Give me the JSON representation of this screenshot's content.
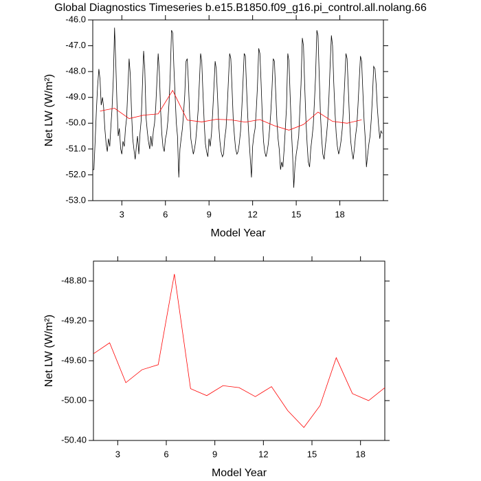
{
  "chart_data": [
    {
      "type": "line",
      "title": "Global Diagnostics Timeseries b.e15.B1850.f09_g16.pi_control.all.nolang.66",
      "xlabel": "Model Year",
      "ylabel": "Net LW (W/m²)",
      "xlim": [
        1,
        21
      ],
      "ylim": [
        -53,
        -46
      ],
      "xticks": [
        3,
        6,
        9,
        12,
        15,
        18
      ],
      "yticks": [
        {
          "value": -46,
          "label": "-46.0"
        },
        {
          "value": -47,
          "label": "-47.0"
        },
        {
          "value": -48,
          "label": "-48.0"
        },
        {
          "value": -49,
          "label": "-49.0"
        },
        {
          "value": -50,
          "label": "-50.0"
        },
        {
          "value": -51,
          "label": "-51.0"
        },
        {
          "value": -52,
          "label": "-52.0"
        },
        {
          "value": -53,
          "label": "-53.0"
        }
      ],
      "series": [
        {
          "color": "#000000",
          "x": [
            1,
            1.08,
            1.17,
            1.25,
            1.33,
            1.42,
            1.5,
            1.58,
            1.67,
            1.75,
            1.83,
            1.92,
            2,
            2.08,
            2.17,
            2.25,
            2.33,
            2.42,
            2.5,
            2.58,
            2.67,
            2.75,
            2.83,
            2.92,
            3,
            3.08,
            3.17,
            3.25,
            3.33,
            3.42,
            3.5,
            3.58,
            3.67,
            3.75,
            3.83,
            3.92,
            4,
            4.08,
            4.17,
            4.25,
            4.33,
            4.42,
            4.5,
            4.58,
            4.67,
            4.75,
            4.83,
            4.92,
            5,
            5.08,
            5.17,
            5.25,
            5.33,
            5.42,
            5.5,
            5.58,
            5.67,
            5.75,
            5.83,
            5.92,
            6,
            6.08,
            6.17,
            6.25,
            6.33,
            6.42,
            6.5,
            6.58,
            6.67,
            6.75,
            6.83,
            6.92,
            7,
            7.08,
            7.17,
            7.25,
            7.33,
            7.42,
            7.5,
            7.58,
            7.67,
            7.75,
            7.83,
            7.92,
            8,
            8.08,
            8.17,
            8.25,
            8.33,
            8.42,
            8.5,
            8.58,
            8.67,
            8.75,
            8.83,
            8.92,
            9,
            9.08,
            9.17,
            9.25,
            9.33,
            9.42,
            9.5,
            9.58,
            9.67,
            9.75,
            9.83,
            9.92,
            10,
            10.08,
            10.17,
            10.25,
            10.33,
            10.42,
            10.5,
            10.58,
            10.67,
            10.75,
            10.83,
            10.92,
            11,
            11.08,
            11.17,
            11.25,
            11.33,
            11.42,
            11.5,
            11.58,
            11.67,
            11.75,
            11.83,
            11.92,
            12,
            12.08,
            12.17,
            12.25,
            12.33,
            12.42,
            12.5,
            12.58,
            12.67,
            12.75,
            12.83,
            12.92,
            13,
            13.08,
            13.17,
            13.25,
            13.33,
            13.42,
            13.5,
            13.58,
            13.67,
            13.75,
            13.83,
            13.92,
            14,
            14.08,
            14.17,
            14.25,
            14.33,
            14.42,
            14.5,
            14.58,
            14.67,
            14.75,
            14.83,
            14.92,
            15,
            15.08,
            15.17,
            15.25,
            15.33,
            15.42,
            15.5,
            15.58,
            15.67,
            15.75,
            15.83,
            15.92,
            16,
            16.08,
            16.17,
            16.25,
            16.33,
            16.42,
            16.5,
            16.58,
            16.67,
            16.75,
            16.83,
            16.92,
            17,
            17.08,
            17.17,
            17.25,
            17.33,
            17.42,
            17.5,
            17.58,
            17.67,
            17.75,
            17.83,
            17.92,
            18,
            18.08,
            18.17,
            18.25,
            18.33,
            18.42,
            18.5,
            18.58,
            18.67,
            18.75,
            18.83,
            18.92,
            19,
            19.08,
            19.17,
            19.25,
            19.33,
            19.42,
            19.5,
            19.58,
            19.67,
            19.75,
            19.83,
            19.92,
            20,
            20.08,
            20.17,
            20.25,
            20.33,
            20.42,
            20.5,
            20.58,
            20.67,
            20.75,
            20.83,
            20.92
          ],
          "values": [
            -51.8,
            -51.8,
            -50.6,
            -49.5,
            -48.6,
            -47.9,
            -48.3,
            -49.3,
            -49.0,
            -49.4,
            -50.2,
            -50.8,
            -51.1,
            -50.6,
            -50.9,
            -50.1,
            -49.4,
            -48.2,
            -46.3,
            -47.6,
            -49.3,
            -50.5,
            -50.2,
            -51.0,
            -51.2,
            -50.7,
            -50.9,
            -50.2,
            -49.8,
            -48.6,
            -47.5,
            -48.1,
            -49.6,
            -50.6,
            -51.0,
            -51.4,
            -50.9,
            -50.5,
            -51.2,
            -50.4,
            -49.9,
            -48.5,
            -47.2,
            -47.9,
            -49.8,
            -50.3,
            -50.7,
            -51.0,
            -50.5,
            -50.9,
            -50.3,
            -50.0,
            -49.4,
            -48.3,
            -47.3,
            -48.0,
            -49.5,
            -50.4,
            -50.9,
            -51.1,
            -50.6,
            -50.4,
            -49.9,
            -49.2,
            -48.1,
            -46.4,
            -46.5,
            -47.8,
            -49.0,
            -50.0,
            -50.5,
            -52.1,
            -51.0,
            -50.6,
            -50.2,
            -49.6,
            -48.9,
            -47.6,
            -47.5,
            -48.4,
            -49.7,
            -50.6,
            -50.9,
            -51.2,
            -51.0,
            -50.7,
            -50.1,
            -49.5,
            -48.5,
            -47.3,
            -47.6,
            -48.8,
            -50.0,
            -50.8,
            -51.1,
            -51.3,
            -50.6,
            -50.9,
            -50.4,
            -49.6,
            -48.7,
            -47.6,
            -47.9,
            -48.9,
            -50.1,
            -50.7,
            -51.1,
            -51.3,
            -51.2,
            -50.6,
            -50.2,
            -49.4,
            -48.4,
            -47.3,
            -47.5,
            -48.6,
            -49.9,
            -50.5,
            -51.0,
            -51.2,
            -51.1,
            -50.8,
            -50.3,
            -49.5,
            -48.5,
            -47.3,
            -47.4,
            -48.6,
            -49.8,
            -50.6,
            -51.3,
            -52.1,
            -50.9,
            -50.5,
            -50.2,
            -49.5,
            -48.6,
            -47.1,
            -47.3,
            -48.4,
            -49.8,
            -50.7,
            -51.1,
            -51.3,
            -51.1,
            -50.8,
            -50.2,
            -49.6,
            -48.7,
            -47.5,
            -47.6,
            -48.7,
            -49.9,
            -50.6,
            -51.0,
            -51.8,
            -51.5,
            -51.7,
            -51.0,
            -50.2,
            -49.4,
            -47.3,
            -47.6,
            -48.9,
            -50.3,
            -51.2,
            -52.5,
            -51.6,
            -51.2,
            -50.9,
            -50.5,
            -49.5,
            -48.5,
            -46.7,
            -47.0,
            -48.5,
            -49.9,
            -50.8,
            -51.5,
            -51.7,
            -51.0,
            -50.6,
            -50.1,
            -49.2,
            -48.2,
            -46.4,
            -46.6,
            -48.1,
            -49.7,
            -50.6,
            -51.2,
            -51.4,
            -50.9,
            -50.5,
            -49.9,
            -49.0,
            -47.8,
            -46.6,
            -47.0,
            -48.4,
            -49.6,
            -50.4,
            -50.9,
            -51.2,
            -51.0,
            -50.7,
            -50.2,
            -49.4,
            -48.5,
            -47.3,
            -47.5,
            -48.6,
            -49.9,
            -50.7,
            -51.1,
            -51.4,
            -51.0,
            -50.5,
            -50.1,
            -49.3,
            -48.4,
            -47.4,
            -47.6,
            -48.7,
            -49.9,
            -50.6,
            -51.7,
            -51.2,
            -50.8,
            -50.5,
            -49.8,
            -48.9,
            -47.8,
            -47.9,
            -48.5,
            -49.4,
            -50.1,
            -50.6,
            -50.3,
            -50.4
          ]
        },
        {
          "color": "#ff0000",
          "x": [
            1.5,
            2.5,
            3.5,
            4.5,
            5.5,
            6.5,
            7.5,
            8.5,
            9.5,
            10.5,
            11.5,
            12.5,
            13.5,
            14.5,
            15.5,
            16.5,
            17.5,
            18.5,
            19.5
          ],
          "values": [
            -49.53,
            -49.42,
            -49.82,
            -49.69,
            -49.64,
            -48.73,
            -49.88,
            -49.95,
            -49.85,
            -49.87,
            -49.96,
            -49.86,
            -50.1,
            -50.27,
            -50.05,
            -49.57,
            -49.93,
            -50,
            -49.87
          ]
        }
      ]
    },
    {
      "type": "line",
      "xlabel": "Model Year",
      "ylabel": "Net LW (W/m²)",
      "xlim": [
        1.5,
        19.5
      ],
      "ylim": [
        -50.4,
        -48.6
      ],
      "xticks": [
        3,
        6,
        9,
        12,
        15,
        18
      ],
      "yticks": [
        {
          "value": -48.8,
          "label": "-48.80"
        },
        {
          "value": -49.2,
          "label": "-49.20"
        },
        {
          "value": -49.6,
          "label": "-49.60"
        },
        {
          "value": -50,
          "label": "-50.00"
        },
        {
          "value": -50.4,
          "label": "-50.40"
        }
      ],
      "series": [
        {
          "color": "#ff0000",
          "x": [
            1.5,
            2.5,
            3.5,
            4.5,
            5.5,
            6.5,
            7.5,
            8.5,
            9.5,
            10.5,
            11.5,
            12.5,
            13.5,
            14.5,
            15.5,
            16.5,
            17.5,
            18.5,
            19.5
          ],
          "values": [
            -49.53,
            -49.42,
            -49.82,
            -49.69,
            -49.64,
            -48.73,
            -49.88,
            -49.95,
            -49.85,
            -49.87,
            -49.96,
            -49.86,
            -50.1,
            -50.27,
            -50.05,
            -49.57,
            -49.93,
            -50,
            -49.87
          ]
        }
      ]
    }
  ]
}
